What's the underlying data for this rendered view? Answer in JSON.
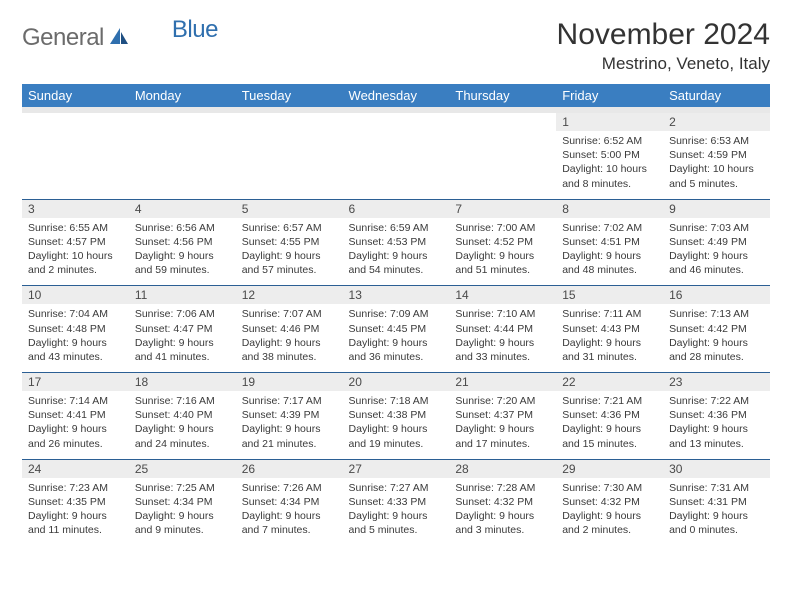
{
  "logo": {
    "general": "General",
    "blue": "Blue"
  },
  "title": "November 2024",
  "location": "Mestrino, Veneto, Italy",
  "colors": {
    "header_bg": "#3a7ec1",
    "header_text": "#ffffff",
    "daynum_bg": "#ededed",
    "sep_line": "#2b5f94",
    "text": "#3a3a3a",
    "logo_gray": "#6b6b6b",
    "logo_blue": "#2f6fae"
  },
  "day_headers": [
    "Sunday",
    "Monday",
    "Tuesday",
    "Wednesday",
    "Thursday",
    "Friday",
    "Saturday"
  ],
  "weeks": [
    [
      null,
      null,
      null,
      null,
      null,
      {
        "n": "1",
        "sr": "Sunrise: 6:52 AM",
        "ss": "Sunset: 5:00 PM",
        "d1": "Daylight: 10 hours",
        "d2": "and 8 minutes."
      },
      {
        "n": "2",
        "sr": "Sunrise: 6:53 AM",
        "ss": "Sunset: 4:59 PM",
        "d1": "Daylight: 10 hours",
        "d2": "and 5 minutes."
      }
    ],
    [
      {
        "n": "3",
        "sr": "Sunrise: 6:55 AM",
        "ss": "Sunset: 4:57 PM",
        "d1": "Daylight: 10 hours",
        "d2": "and 2 minutes."
      },
      {
        "n": "4",
        "sr": "Sunrise: 6:56 AM",
        "ss": "Sunset: 4:56 PM",
        "d1": "Daylight: 9 hours",
        "d2": "and 59 minutes."
      },
      {
        "n": "5",
        "sr": "Sunrise: 6:57 AM",
        "ss": "Sunset: 4:55 PM",
        "d1": "Daylight: 9 hours",
        "d2": "and 57 minutes."
      },
      {
        "n": "6",
        "sr": "Sunrise: 6:59 AM",
        "ss": "Sunset: 4:53 PM",
        "d1": "Daylight: 9 hours",
        "d2": "and 54 minutes."
      },
      {
        "n": "7",
        "sr": "Sunrise: 7:00 AM",
        "ss": "Sunset: 4:52 PM",
        "d1": "Daylight: 9 hours",
        "d2": "and 51 minutes."
      },
      {
        "n": "8",
        "sr": "Sunrise: 7:02 AM",
        "ss": "Sunset: 4:51 PM",
        "d1": "Daylight: 9 hours",
        "d2": "and 48 minutes."
      },
      {
        "n": "9",
        "sr": "Sunrise: 7:03 AM",
        "ss": "Sunset: 4:49 PM",
        "d1": "Daylight: 9 hours",
        "d2": "and 46 minutes."
      }
    ],
    [
      {
        "n": "10",
        "sr": "Sunrise: 7:04 AM",
        "ss": "Sunset: 4:48 PM",
        "d1": "Daylight: 9 hours",
        "d2": "and 43 minutes."
      },
      {
        "n": "11",
        "sr": "Sunrise: 7:06 AM",
        "ss": "Sunset: 4:47 PM",
        "d1": "Daylight: 9 hours",
        "d2": "and 41 minutes."
      },
      {
        "n": "12",
        "sr": "Sunrise: 7:07 AM",
        "ss": "Sunset: 4:46 PM",
        "d1": "Daylight: 9 hours",
        "d2": "and 38 minutes."
      },
      {
        "n": "13",
        "sr": "Sunrise: 7:09 AM",
        "ss": "Sunset: 4:45 PM",
        "d1": "Daylight: 9 hours",
        "d2": "and 36 minutes."
      },
      {
        "n": "14",
        "sr": "Sunrise: 7:10 AM",
        "ss": "Sunset: 4:44 PM",
        "d1": "Daylight: 9 hours",
        "d2": "and 33 minutes."
      },
      {
        "n": "15",
        "sr": "Sunrise: 7:11 AM",
        "ss": "Sunset: 4:43 PM",
        "d1": "Daylight: 9 hours",
        "d2": "and 31 minutes."
      },
      {
        "n": "16",
        "sr": "Sunrise: 7:13 AM",
        "ss": "Sunset: 4:42 PM",
        "d1": "Daylight: 9 hours",
        "d2": "and 28 minutes."
      }
    ],
    [
      {
        "n": "17",
        "sr": "Sunrise: 7:14 AM",
        "ss": "Sunset: 4:41 PM",
        "d1": "Daylight: 9 hours",
        "d2": "and 26 minutes."
      },
      {
        "n": "18",
        "sr": "Sunrise: 7:16 AM",
        "ss": "Sunset: 4:40 PM",
        "d1": "Daylight: 9 hours",
        "d2": "and 24 minutes."
      },
      {
        "n": "19",
        "sr": "Sunrise: 7:17 AM",
        "ss": "Sunset: 4:39 PM",
        "d1": "Daylight: 9 hours",
        "d2": "and 21 minutes."
      },
      {
        "n": "20",
        "sr": "Sunrise: 7:18 AM",
        "ss": "Sunset: 4:38 PM",
        "d1": "Daylight: 9 hours",
        "d2": "and 19 minutes."
      },
      {
        "n": "21",
        "sr": "Sunrise: 7:20 AM",
        "ss": "Sunset: 4:37 PM",
        "d1": "Daylight: 9 hours",
        "d2": "and 17 minutes."
      },
      {
        "n": "22",
        "sr": "Sunrise: 7:21 AM",
        "ss": "Sunset: 4:36 PM",
        "d1": "Daylight: 9 hours",
        "d2": "and 15 minutes."
      },
      {
        "n": "23",
        "sr": "Sunrise: 7:22 AM",
        "ss": "Sunset: 4:36 PM",
        "d1": "Daylight: 9 hours",
        "d2": "and 13 minutes."
      }
    ],
    [
      {
        "n": "24",
        "sr": "Sunrise: 7:23 AM",
        "ss": "Sunset: 4:35 PM",
        "d1": "Daylight: 9 hours",
        "d2": "and 11 minutes."
      },
      {
        "n": "25",
        "sr": "Sunrise: 7:25 AM",
        "ss": "Sunset: 4:34 PM",
        "d1": "Daylight: 9 hours",
        "d2": "and 9 minutes."
      },
      {
        "n": "26",
        "sr": "Sunrise: 7:26 AM",
        "ss": "Sunset: 4:34 PM",
        "d1": "Daylight: 9 hours",
        "d2": "and 7 minutes."
      },
      {
        "n": "27",
        "sr": "Sunrise: 7:27 AM",
        "ss": "Sunset: 4:33 PM",
        "d1": "Daylight: 9 hours",
        "d2": "and 5 minutes."
      },
      {
        "n": "28",
        "sr": "Sunrise: 7:28 AM",
        "ss": "Sunset: 4:32 PM",
        "d1": "Daylight: 9 hours",
        "d2": "and 3 minutes."
      },
      {
        "n": "29",
        "sr": "Sunrise: 7:30 AM",
        "ss": "Sunset: 4:32 PM",
        "d1": "Daylight: 9 hours",
        "d2": "and 2 minutes."
      },
      {
        "n": "30",
        "sr": "Sunrise: 7:31 AM",
        "ss": "Sunset: 4:31 PM",
        "d1": "Daylight: 9 hours",
        "d2": "and 0 minutes."
      }
    ]
  ]
}
